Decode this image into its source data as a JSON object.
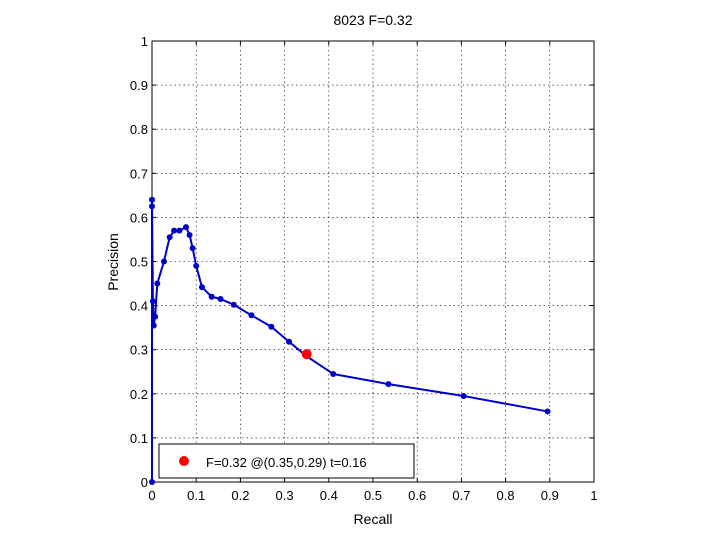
{
  "chart_data": {
    "type": "line",
    "title": "8023 F=0.32",
    "xlabel": "Recall",
    "ylabel": "Precision",
    "xlim": [
      0,
      1
    ],
    "ylim": [
      0,
      1
    ],
    "xticks": [
      "0",
      "0.1",
      "0.2",
      "0.3",
      "0.4",
      "0.5",
      "0.6",
      "0.7",
      "0.8",
      "0.9",
      "1"
    ],
    "yticks": [
      "0",
      "0.1",
      "0.2",
      "0.3",
      "0.4",
      "0.5",
      "0.6",
      "0.7",
      "0.8",
      "0.9",
      "1"
    ],
    "grid": true,
    "series": [
      {
        "color": "#0000cc",
        "x": [
          0.0,
          0.0,
          0.0,
          0.002,
          0.004,
          0.007,
          0.012,
          0.027,
          0.04,
          0.05,
          0.062,
          0.077,
          0.085,
          0.092,
          0.1,
          0.113,
          0.135,
          0.155,
          0.185,
          0.225,
          0.27,
          0.31,
          0.35,
          0.41,
          0.535,
          0.705,
          0.895
        ],
        "y": [
          0.0,
          0.625,
          0.64,
          0.41,
          0.355,
          0.375,
          0.45,
          0.5,
          0.555,
          0.57,
          0.57,
          0.578,
          0.56,
          0.53,
          0.49,
          0.442,
          0.42,
          0.415,
          0.402,
          0.378,
          0.352,
          0.318,
          0.285,
          0.245,
          0.222,
          0.195,
          0.16
        ]
      }
    ],
    "best_point": {
      "x": 0.35,
      "y": 0.29,
      "color": "#ff0000"
    },
    "legend": {
      "placement": "bottom-left",
      "label": "F=0.32 @(0.35,0.29) t=0.16"
    }
  }
}
